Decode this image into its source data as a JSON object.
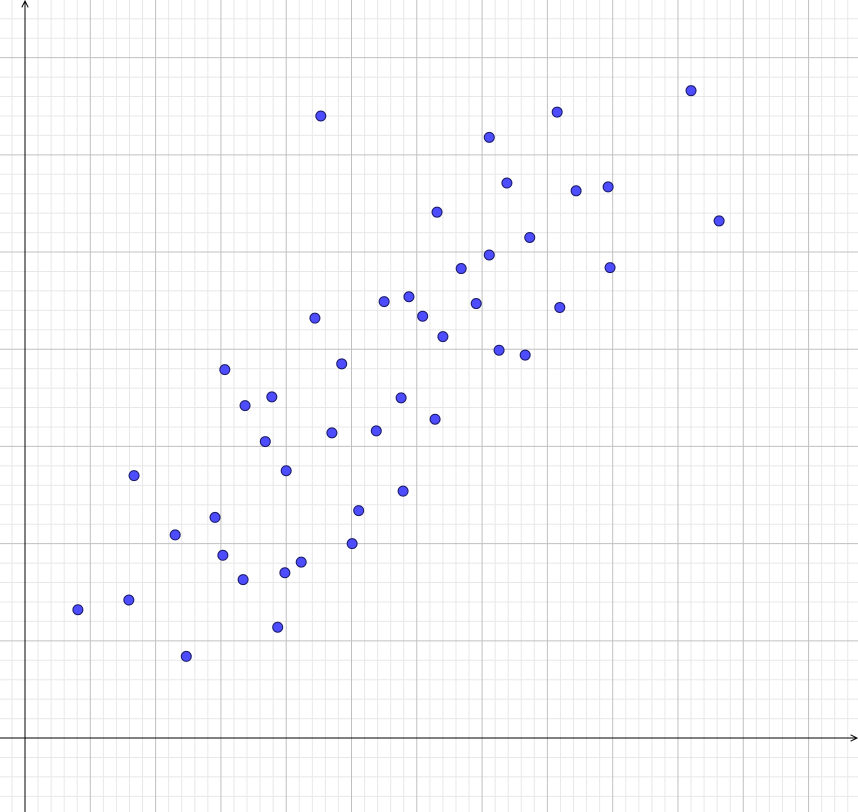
{
  "chart_data": {
    "type": "scatter",
    "x": [
      0.81,
      1.59,
      1.67,
      2.3,
      2.47,
      2.91,
      3.03,
      3.06,
      3.34,
      3.37,
      3.68,
      3.78,
      3.87,
      3.98,
      4.0,
      4.23,
      4.44,
      4.53,
      4.7,
      4.85,
      5.01,
      5.11,
      5.38,
      5.5,
      5.76,
      5.79,
      5.88,
      6.09,
      6.28,
      6.31,
      6.4,
      6.68,
      6.91,
      7.11,
      7.11,
      7.26,
      7.38,
      7.66,
      7.73,
      8.15,
      8.19,
      8.44,
      8.93,
      8.96,
      10.2,
      10.63
    ],
    "values": [
      1.32,
      1.42,
      2.7,
      2.09,
      0.84,
      2.27,
      1.88,
      3.79,
      1.63,
      3.42,
      3.05,
      3.51,
      1.14,
      1.7,
      2.75,
      1.81,
      4.32,
      6.4,
      3.14,
      3.85,
      2.0,
      2.34,
      3.16,
      4.49,
      3.5,
      2.54,
      4.54,
      4.34,
      3.28,
      5.41,
      4.13,
      4.83,
      4.47,
      4.97,
      6.18,
      3.99,
      5.71,
      3.94,
      5.15,
      6.44,
      4.43,
      5.63,
      5.67,
      4.84,
      6.66,
      5.32
    ],
    "color": "#4d4dff",
    "xlim": [
      -0.383,
      12.757
    ],
    "ylim": [
      -0.761,
      7.593
    ],
    "xticks": [
      1,
      2,
      3,
      4,
      5,
      6,
      7,
      8,
      9,
      10,
      11,
      12
    ],
    "yticks": [
      1,
      2,
      3,
      4,
      5,
      6,
      7
    ],
    "grid": true,
    "minor_grid": 5
  }
}
